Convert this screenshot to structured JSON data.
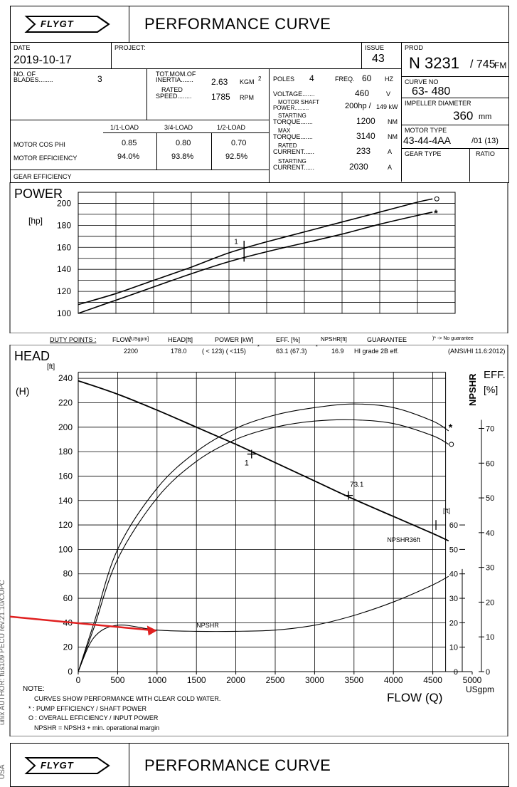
{
  "header": {
    "brand": "FLYGT",
    "title": "PERFORMANCE CURVE"
  },
  "info": {
    "date_label": "DATE",
    "date": "2019-10-17",
    "project_label": "PROJECT:",
    "issue_label": "ISSUE",
    "issue": "43",
    "prod_label": "PROD",
    "prod": "N 3231",
    "prod_suffix": "/ 745",
    "prod_fm": "FM",
    "blades_label_1": "NO. OF",
    "blades_label_2": "BLADES........",
    "blades": "3",
    "inertia_label_1": "TOT.MOM.OF",
    "inertia_label_2": "INERTIA.......",
    "inertia": "2.63",
    "inertia_unit": "KGM",
    "inertia_sup": "2",
    "rated_label_1": "RATED",
    "rated_label_2": "SPEED........",
    "rated_speed": "1785",
    "rated_unit": "RPM",
    "poles_label": "POLES",
    "poles": "4",
    "freq_label": "FREQ.",
    "freq": "60",
    "freq_unit": "HZ",
    "voltage_label": "VOLTAGE.......",
    "voltage": "460",
    "voltage_unit": "V",
    "shaft_label_1": "MOTOR SHAFT",
    "shaft_label_2": "POWER.........",
    "shaft_hp": "200hp /",
    "shaft_kw": "149 kW",
    "start_torque_label_1": "STARTING",
    "start_torque_label_2": "TORQUE.......",
    "start_torque": "1200",
    "torque_unit": "NM",
    "max_torque_label_1": "MAX",
    "max_torque_label_2": "TORQUE.......",
    "max_torque": "3140",
    "rated_current_label_1": "RATED",
    "rated_current_label_2": "CURRENT......",
    "rated_current": "233",
    "current_unit": "A",
    "start_current_label_1": "STARTING",
    "start_current_label_2": "CURRENT......",
    "start_current": "2030",
    "curve_no_label": "CURVE NO",
    "curve_no": "63- 480",
    "impeller_label": "IMPELLER DIAMETER",
    "impeller": "360",
    "impeller_unit": "mm",
    "motor_type_label": "MOTOR TYPE",
    "motor_type": "43-44-4AA",
    "motor_type_suffix": "/01 (13)",
    "gear_type_label": "GEAR TYPE",
    "ratio_label": "RATIO",
    "load_headers": [
      "1/1-LOAD",
      "3/4-LOAD",
      "1/2-LOAD"
    ],
    "cos_phi_label": "MOTOR COS PHI",
    "cos_phi": [
      "0.85",
      "0.80",
      "0.70"
    ],
    "efficiency_label": "MOTOR EFFICIENCY",
    "efficiency": [
      "94.0%",
      "93.8%",
      "92.5%"
    ],
    "gear_eff_label": "GEAR EFFICIENCY"
  },
  "duty": {
    "label": "DUTY POINTS :",
    "flow_label": "FLOW",
    "flow_unit": "[USgpm]",
    "head_label": "HEAD[ft]",
    "power_label": "POWER [kW]",
    "eff_label": "EFF. [%]",
    "npshr_label": "NPSHR[ft]",
    "guarantee_label": "GUARANTEE",
    "no_guarantee": ")* -> No guarantee",
    "flow": "2200",
    "head": "178.0",
    "power": "( < 123)  ( <115)",
    "power_star": "*",
    "eff": "63.1  (67.3)",
    "eff_star": "*",
    "npshr": "16.9",
    "guarantee": "HI grade 2B eff.",
    "standard": "(ANSI/HI 11.6:2012)"
  },
  "notes": {
    "title": "NOTE:",
    "line1": "CURVES  SHOW PERFORMANCE WITH CLEAR COLD WATER.",
    "line2": "*  : PUMP EFFICIENCY / SHAFT POWER",
    "line3": "O  : OVERALL EFFICIENCY / INPUT POWER",
    "line4": "NPSHR      = NPSH3 + min. operational margin"
  },
  "side_text": "unix AUTHOR: fus109   PECU rev.21.10/CUPC",
  "side_text_2": "USA",
  "colors": {
    "line": "#000000",
    "grid": "#000000",
    "arrow": "#e02020"
  },
  "chart_data": [
    {
      "type": "line",
      "title": "POWER",
      "ylabel": "[hp]",
      "xlim": [
        0,
        5000
      ],
      "ylim": [
        100,
        210
      ],
      "yticks": [
        100,
        120,
        140,
        160,
        180,
        200
      ],
      "grid": true,
      "duty_label": "1",
      "series": [
        {
          "marker": "o",
          "x": [
            0,
            500,
            1000,
            1500,
            2000,
            2500,
            3000,
            3500,
            4000,
            4500,
            4700
          ],
          "y": [
            108,
            118,
            130,
            142,
            155,
            165,
            174,
            183,
            192,
            201,
            204
          ]
        },
        {
          "marker": "*",
          "x": [
            0,
            500,
            1000,
            1500,
            2000,
            2500,
            3000,
            3500,
            4000,
            4500,
            4700
          ],
          "y": [
            100,
            112,
            124,
            136,
            147,
            156,
            164,
            172,
            181,
            189,
            192
          ]
        }
      ]
    },
    {
      "type": "line",
      "title": "HEAD",
      "ylabel": "(H)",
      "yunit": "[ft]",
      "xlabel": "FLOW (Q)",
      "xunit": "USgpm",
      "xlim": [
        0,
        5000
      ],
      "ylim": [
        0,
        250
      ],
      "xticks": [
        0,
        500,
        1000,
        1500,
        2000,
        2500,
        3000,
        3500,
        4000,
        4500,
        5000
      ],
      "yticks": [
        0,
        20,
        40,
        60,
        80,
        100,
        120,
        140,
        160,
        180,
        200,
        220,
        240
      ],
      "grid": true,
      "right_axis_eff_label": "EFF.",
      "right_axis_eff_unit": "[%]",
      "right_axis_npshr_label": "NPSHR",
      "right_axis_npshr_unit": "[ft]",
      "eff_ticks": [
        0,
        10,
        20,
        30,
        40,
        50,
        60,
        70
      ],
      "npshr_ticks": [
        0,
        10,
        20,
        30,
        40,
        50,
        60
      ],
      "annotations": {
        "duty": "1",
        "bep": "73.1",
        "npshr": "NPSHR",
        "npshr36": "NPSHR36ft"
      },
      "series": [
        {
          "name": "H",
          "x": [
            0,
            500,
            1000,
            1500,
            2000,
            2200,
            2500,
            3000,
            3500,
            4000,
            4500,
            4700
          ],
          "y": [
            238,
            227,
            214,
            200,
            186,
            180,
            171,
            156,
            141,
            127,
            113,
            107
          ]
        },
        {
          "marker": "*",
          "x": [
            0,
            200,
            500,
            1000,
            1500,
            2000,
            2500,
            3000,
            3500,
            4000,
            4500,
            4700
          ],
          "y": [
            0,
            40,
            100,
            150,
            180,
            199,
            210,
            216,
            219,
            216,
            205,
            197
          ]
        },
        {
          "marker": "o",
          "x": [
            0,
            200,
            500,
            1000,
            1500,
            2000,
            2500,
            3000,
            3500,
            4000,
            4500,
            4700
          ],
          "y": [
            0,
            36,
            92,
            142,
            172,
            190,
            200,
            205,
            206,
            203,
            193,
            186
          ]
        },
        {
          "name": "NPSHR",
          "x": [
            0,
            200,
            500,
            1000,
            1500,
            2000,
            2500,
            3000,
            3500,
            4000,
            4500,
            4700
          ],
          "y": [
            0,
            28,
            38,
            34,
            33,
            33,
            34,
            38,
            46,
            57,
            71,
            78
          ]
        }
      ]
    }
  ]
}
